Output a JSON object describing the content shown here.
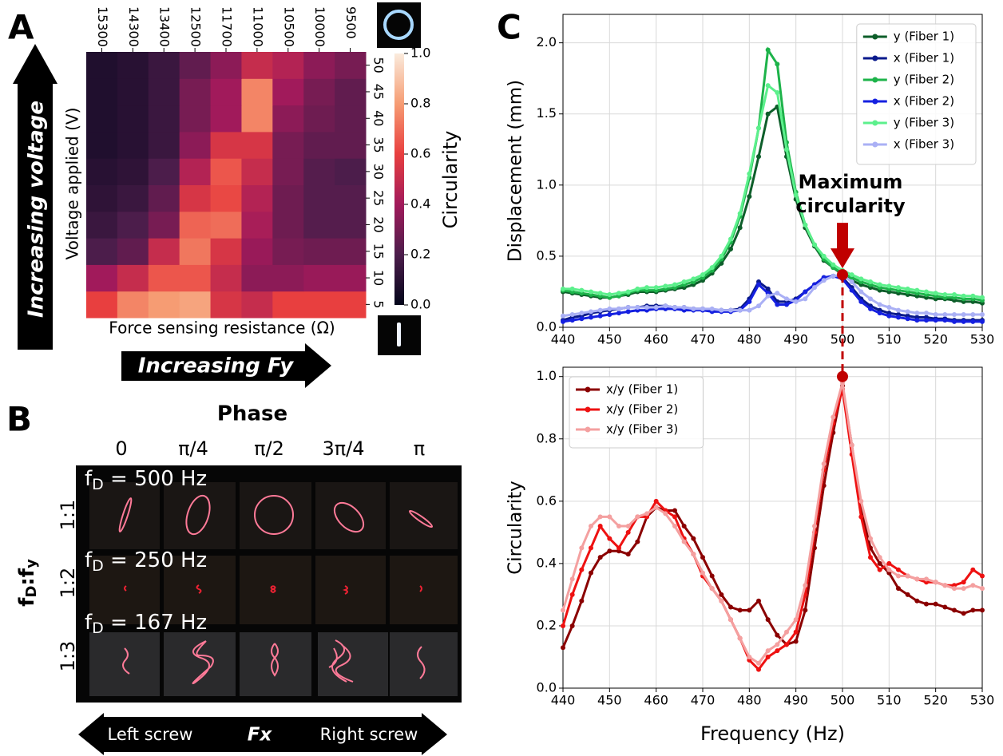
{
  "panel_labels": [
    "A",
    "B",
    "C"
  ],
  "panel_a_arrows": {
    "vertical": "Increasing voltage",
    "horizontal": "Increasing Fy"
  },
  "panel_b": {
    "title": "Phase",
    "phases": [
      "0",
      "π/4",
      "π/2",
      "3π/4",
      "π"
    ],
    "ratio_axis": [
      "f",
      "D",
      ":f",
      "y"
    ],
    "rows": [
      {
        "ratio": "1:1",
        "symbol": "f",
        "subscript": "D",
        "frequency": " = 500 Hz"
      },
      {
        "ratio": "1:2",
        "symbol": "f",
        "subscript": "D",
        "frequency": " = 250 Hz"
      },
      {
        "ratio": "1:3",
        "symbol": "f",
        "subscript": "D",
        "frequency": " = 167 Hz"
      }
    ],
    "arrow": {
      "left": "Left screw",
      "center": "Fx",
      "right": "Right screw"
    }
  },
  "chart_data": [
    {
      "type": "heatmap",
      "x_label": "Force sensing resistance (Ω)",
      "y_label": "Voltage applied (V)",
      "colorbar_label": "Circularity",
      "x_categories": [
        15300,
        14300,
        13400,
        12500,
        11700,
        11000,
        10500,
        10000,
        9500
      ],
      "y_categories": [
        5,
        10,
        15,
        20,
        25,
        30,
        35,
        40,
        45,
        50
      ],
      "values": [
        [
          0.6,
          0.75,
          0.8,
          0.82,
          0.55,
          0.5,
          0.6,
          0.6,
          0.6
        ],
        [
          0.4,
          0.5,
          0.65,
          0.65,
          0.5,
          0.35,
          0.35,
          0.38,
          0.38
        ],
        [
          0.2,
          0.25,
          0.5,
          0.72,
          0.55,
          0.38,
          0.3,
          0.28,
          0.28
        ],
        [
          0.15,
          0.2,
          0.3,
          0.68,
          0.7,
          0.42,
          0.28,
          0.22,
          0.22
        ],
        [
          0.12,
          0.15,
          0.25,
          0.55,
          0.62,
          0.45,
          0.28,
          0.22,
          0.22
        ],
        [
          0.1,
          0.12,
          0.2,
          0.45,
          0.65,
          0.5,
          0.3,
          0.22,
          0.2
        ],
        [
          0.08,
          0.1,
          0.15,
          0.35,
          0.55,
          0.55,
          0.3,
          0.25,
          0.25
        ],
        [
          0.08,
          0.1,
          0.15,
          0.3,
          0.4,
          0.75,
          0.35,
          0.28,
          0.25
        ],
        [
          0.08,
          0.1,
          0.15,
          0.3,
          0.4,
          0.75,
          0.4,
          0.3,
          0.25
        ],
        [
          0.08,
          0.1,
          0.15,
          0.25,
          0.35,
          0.5,
          0.45,
          0.35,
          0.3
        ]
      ],
      "colorbar_lim": [
        0,
        1
      ],
      "colorbar_ticks": [
        {
          "value": 0,
          "label": "0.0"
        },
        0.2,
        0.4,
        0.6,
        0.8,
        {
          "value": 1,
          "label": "1.0"
        }
      ],
      "colormap": "rocket"
    },
    {
      "type": "line",
      "y_label": "Displacement (mm)",
      "x": [
        440,
        442,
        444,
        446,
        448,
        450,
        452,
        454,
        456,
        458,
        460,
        462,
        464,
        466,
        468,
        470,
        472,
        474,
        476,
        478,
        480,
        482,
        484,
        486,
        488,
        490,
        492,
        494,
        496,
        498,
        500,
        502,
        504,
        506,
        508,
        510,
        512,
        514,
        516,
        518,
        520,
        522,
        524,
        526,
        528,
        530
      ],
      "series": [
        {
          "name": "y (Fiber 1)",
          "color": "#0d5e2a",
          "values": [
            0.25,
            0.24,
            0.23,
            0.22,
            0.21,
            0.21,
            0.22,
            0.23,
            0.25,
            0.25,
            0.25,
            0.26,
            0.27,
            0.28,
            0.3,
            0.33,
            0.38,
            0.45,
            0.55,
            0.7,
            0.92,
            1.2,
            1.5,
            1.55,
            1.2,
            0.9,
            0.7,
            0.57,
            0.47,
            0.42,
            0.37,
            0.33,
            0.3,
            0.28,
            0.26,
            0.25,
            0.24,
            0.23,
            0.22,
            0.21,
            0.2,
            0.2,
            0.19,
            0.18,
            0.18,
            0.17
          ]
        },
        {
          "name": "x (Fiber 1)",
          "color": "#0a1a8c",
          "values": [
            0.05,
            0.07,
            0.08,
            0.1,
            0.11,
            0.12,
            0.13,
            0.14,
            0.14,
            0.15,
            0.15,
            0.15,
            0.14,
            0.14,
            0.13,
            0.13,
            0.12,
            0.12,
            0.12,
            0.13,
            0.2,
            0.32,
            0.27,
            0.18,
            0.18,
            0.2,
            0.25,
            0.3,
            0.35,
            0.36,
            0.35,
            0.28,
            0.2,
            0.15,
            0.12,
            0.1,
            0.09,
            0.08,
            0.07,
            0.07,
            0.06,
            0.06,
            0.05,
            0.05,
            0.05,
            0.05
          ]
        },
        {
          "name": "y (Fiber 2)",
          "color": "#1db34a",
          "values": [
            0.26,
            0.25,
            0.24,
            0.23,
            0.22,
            0.21,
            0.22,
            0.24,
            0.26,
            0.26,
            0.26,
            0.27,
            0.28,
            0.3,
            0.32,
            0.35,
            0.4,
            0.48,
            0.6,
            0.78,
            1.05,
            1.4,
            1.95,
            1.85,
            1.3,
            0.95,
            0.72,
            0.58,
            0.48,
            0.42,
            0.38,
            0.35,
            0.32,
            0.3,
            0.28,
            0.27,
            0.26,
            0.25,
            0.24,
            0.23,
            0.22,
            0.21,
            0.21,
            0.2,
            0.2,
            0.19
          ]
        },
        {
          "name": "x (Fiber 2)",
          "color": "#1520e0",
          "values": [
            0.04,
            0.05,
            0.06,
            0.07,
            0.08,
            0.09,
            0.1,
            0.11,
            0.12,
            0.12,
            0.13,
            0.13,
            0.13,
            0.12,
            0.12,
            0.12,
            0.11,
            0.11,
            0.11,
            0.12,
            0.18,
            0.3,
            0.24,
            0.16,
            0.16,
            0.19,
            0.25,
            0.3,
            0.35,
            0.36,
            0.34,
            0.26,
            0.18,
            0.13,
            0.1,
            0.08,
            0.07,
            0.06,
            0.05,
            0.05,
            0.05,
            0.05,
            0.04,
            0.04,
            0.04,
            0.04
          ]
        },
        {
          "name": "y (Fiber 3)",
          "color": "#5cf08c",
          "values": [
            0.27,
            0.27,
            0.26,
            0.25,
            0.24,
            0.23,
            0.24,
            0.25,
            0.27,
            0.28,
            0.28,
            0.29,
            0.3,
            0.32,
            0.34,
            0.37,
            0.42,
            0.5,
            0.62,
            0.8,
            1.08,
            1.4,
            1.7,
            1.65,
            1.25,
            0.93,
            0.72,
            0.58,
            0.5,
            0.44,
            0.4,
            0.37,
            0.34,
            0.32,
            0.3,
            0.29,
            0.28,
            0.27,
            0.26,
            0.25,
            0.24,
            0.23,
            0.23,
            0.22,
            0.22,
            0.21
          ]
        },
        {
          "name": "x (Fiber 3)",
          "color": "#aab0f5",
          "values": [
            0.08,
            0.09,
            0.1,
            0.11,
            0.12,
            0.13,
            0.13,
            0.14,
            0.14,
            0.14,
            0.14,
            0.15,
            0.14,
            0.14,
            0.13,
            0.13,
            0.13,
            0.12,
            0.12,
            0.12,
            0.12,
            0.15,
            0.22,
            0.24,
            0.2,
            0.18,
            0.2,
            0.28,
            0.33,
            0.36,
            0.37,
            0.32,
            0.25,
            0.2,
            0.16,
            0.14,
            0.12,
            0.11,
            0.1,
            0.1,
            0.09,
            0.09,
            0.09,
            0.09,
            0.09,
            0.09
          ]
        }
      ],
      "xlim": [
        440,
        530
      ],
      "ylim": [
        0,
        2.2
      ],
      "xticks": [
        440,
        450,
        460,
        470,
        480,
        490,
        500,
        510,
        520,
        530
      ],
      "yticks": [
        {
          "value": 0,
          "label": "0.0"
        },
        0.5,
        {
          "value": 1,
          "label": "1.0"
        },
        1.5,
        {
          "value": 2,
          "label": "2.0"
        }
      ],
      "grid": true,
      "legend": "upper right",
      "highlight": {
        "x": 500,
        "y": 0.37,
        "color": "#c00000"
      },
      "annotation": [
        "Maximum",
        "circularity"
      ]
    },
    {
      "type": "line",
      "y_label": "Circularity",
      "x_label": "Frequency (Hz)",
      "x": [
        440,
        442,
        444,
        446,
        448,
        450,
        452,
        454,
        456,
        458,
        460,
        462,
        464,
        466,
        468,
        470,
        472,
        474,
        476,
        478,
        480,
        482,
        484,
        486,
        488,
        490,
        492,
        494,
        496,
        498,
        500,
        502,
        504,
        506,
        508,
        510,
        512,
        514,
        516,
        518,
        520,
        522,
        524,
        526,
        528,
        530
      ],
      "series": [
        {
          "name": "x/y (Fiber 1)",
          "color": "#8b0000",
          "values": [
            0.13,
            0.2,
            0.28,
            0.37,
            0.42,
            0.44,
            0.44,
            0.43,
            0.47,
            0.55,
            0.58,
            0.57,
            0.57,
            0.52,
            0.48,
            0.42,
            0.36,
            0.3,
            0.26,
            0.25,
            0.25,
            0.28,
            0.22,
            0.17,
            0.14,
            0.15,
            0.25,
            0.45,
            0.65,
            0.82,
            0.97,
            0.78,
            0.58,
            0.45,
            0.4,
            0.37,
            0.32,
            0.3,
            0.28,
            0.27,
            0.27,
            0.26,
            0.25,
            0.24,
            0.25,
            0.25
          ]
        },
        {
          "name": "x/y (Fiber 2)",
          "color": "#ee1111",
          "values": [
            0.2,
            0.3,
            0.38,
            0.45,
            0.52,
            0.48,
            0.45,
            0.5,
            0.55,
            0.55,
            0.6,
            0.57,
            0.55,
            0.48,
            0.43,
            0.36,
            0.32,
            0.28,
            0.22,
            0.16,
            0.09,
            0.06,
            0.1,
            0.12,
            0.14,
            0.18,
            0.3,
            0.5,
            0.7,
            0.85,
            0.96,
            0.75,
            0.55,
            0.42,
            0.38,
            0.4,
            0.38,
            0.36,
            0.35,
            0.34,
            0.34,
            0.33,
            0.33,
            0.34,
            0.38,
            0.36
          ]
        },
        {
          "name": "x/y (Fiber 3)",
          "color": "#f4a0a0",
          "values": [
            0.25,
            0.35,
            0.45,
            0.52,
            0.55,
            0.55,
            0.52,
            0.52,
            0.55,
            0.56,
            0.58,
            0.56,
            0.52,
            0.47,
            0.43,
            0.37,
            0.32,
            0.28,
            0.22,
            0.16,
            0.1,
            0.08,
            0.12,
            0.14,
            0.18,
            0.22,
            0.33,
            0.52,
            0.72,
            0.87,
            0.98,
            0.78,
            0.6,
            0.48,
            0.42,
            0.38,
            0.36,
            0.36,
            0.35,
            0.35,
            0.34,
            0.33,
            0.32,
            0.32,
            0.33,
            0.32
          ]
        }
      ],
      "xlim": [
        440,
        530
      ],
      "ylim": [
        0,
        1.03
      ],
      "xticks": [
        440,
        450,
        460,
        470,
        480,
        490,
        500,
        510,
        520,
        530
      ],
      "yticks": [
        {
          "value": 0,
          "label": "0.0"
        },
        0.2,
        0.4,
        0.6,
        0.8,
        {
          "value": 1,
          "label": "1.0"
        }
      ],
      "grid": true,
      "legend": "upper left",
      "highlight": {
        "x": 500,
        "y": 1.0,
        "color": "#c00000"
      }
    }
  ]
}
